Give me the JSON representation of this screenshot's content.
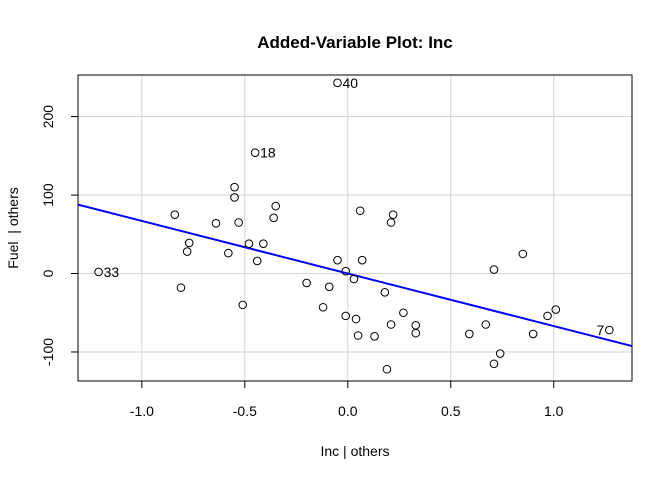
{
  "chart_data": {
    "type": "scatter",
    "title": "Added-Variable Plot: Inc",
    "xlabel": "Inc | others",
    "ylabel": "Fuel  | others",
    "xlim": [
      -1.31,
      1.38
    ],
    "ylim": [
      -137,
      253
    ],
    "xticks": [
      -1.0,
      -0.5,
      0.0,
      0.5,
      1.0
    ],
    "xtick_labels": [
      "-1.0",
      "-0.5",
      "0.0",
      "0.5",
      "1.0"
    ],
    "yticks": [
      -100,
      0,
      100,
      200
    ],
    "ytick_labels": [
      "-100",
      "0",
      "100",
      "200"
    ],
    "grid": true,
    "colors": {
      "points": "#000000",
      "fit_line": "#0000ff",
      "grid": "#d3d3d3"
    },
    "fit_line": {
      "slope": -67,
      "intercept": 0
    },
    "points": [
      {
        "x": -0.05,
        "y": 243,
        "label": "40"
      },
      {
        "x": -0.45,
        "y": 154,
        "label": "18"
      },
      {
        "x": -1.21,
        "y": 2,
        "label": "33"
      },
      {
        "x": 1.27,
        "y": -72,
        "label": "7"
      },
      {
        "x": -0.55,
        "y": 110
      },
      {
        "x": -0.55,
        "y": 97
      },
      {
        "x": -0.35,
        "y": 86
      },
      {
        "x": -0.84,
        "y": 75
      },
      {
        "x": -0.36,
        "y": 71
      },
      {
        "x": -0.64,
        "y": 64
      },
      {
        "x": -0.53,
        "y": 65
      },
      {
        "x": 0.06,
        "y": 80
      },
      {
        "x": 0.22,
        "y": 75
      },
      {
        "x": 0.21,
        "y": 65
      },
      {
        "x": -0.77,
        "y": 39
      },
      {
        "x": -0.48,
        "y": 38
      },
      {
        "x": -0.41,
        "y": 38
      },
      {
        "x": -0.78,
        "y": 28
      },
      {
        "x": -0.58,
        "y": 26
      },
      {
        "x": -0.44,
        "y": 16
      },
      {
        "x": -0.05,
        "y": 17
      },
      {
        "x": 0.07,
        "y": 17
      },
      {
        "x": -0.01,
        "y": 3
      },
      {
        "x": 0.03,
        "y": -7
      },
      {
        "x": 0.71,
        "y": 5
      },
      {
        "x": 0.85,
        "y": 25
      },
      {
        "x": -0.81,
        "y": -18
      },
      {
        "x": -0.2,
        "y": -12
      },
      {
        "x": -0.09,
        "y": -17
      },
      {
        "x": 0.18,
        "y": -24
      },
      {
        "x": -0.51,
        "y": -40
      },
      {
        "x": -0.12,
        "y": -43
      },
      {
        "x": -0.01,
        "y": -54
      },
      {
        "x": 0.04,
        "y": -58
      },
      {
        "x": 0.27,
        "y": -50
      },
      {
        "x": 0.21,
        "y": -65
      },
      {
        "x": 0.33,
        "y": -66
      },
      {
        "x": 0.05,
        "y": -79
      },
      {
        "x": 0.13,
        "y": -80
      },
      {
        "x": 0.33,
        "y": -76
      },
      {
        "x": 0.59,
        "y": -77
      },
      {
        "x": 0.67,
        "y": -65
      },
      {
        "x": 0.9,
        "y": -77
      },
      {
        "x": 0.97,
        "y": -54
      },
      {
        "x": 1.01,
        "y": -46
      },
      {
        "x": 0.74,
        "y": -102
      },
      {
        "x": 0.71,
        "y": -115
      },
      {
        "x": 0.19,
        "y": -122
      }
    ]
  }
}
